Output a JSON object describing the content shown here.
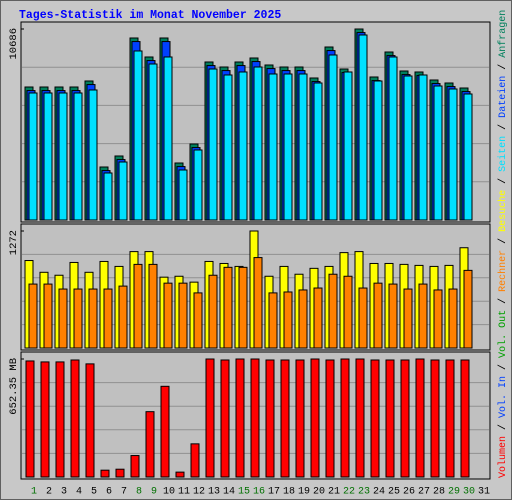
{
  "chart_data": {
    "type": "bar",
    "title": "Tages-Statistik im Monat November 2025",
    "separator": "/",
    "categories": [
      "1",
      "2",
      "3",
      "4",
      "5",
      "6",
      "7",
      "8",
      "9",
      "10",
      "11",
      "12",
      "13",
      "14",
      "15",
      "16",
      "17",
      "18",
      "19",
      "20",
      "21",
      "22",
      "23",
      "24",
      "25",
      "26",
      "27",
      "28",
      "29",
      "30",
      "31"
    ],
    "category_colors": [
      "#007000",
      "#000000",
      "#000000",
      "#000000",
      "#000000",
      "#000000",
      "#000000",
      "#007000",
      "#007000",
      "#000000",
      "#000000",
      "#000000",
      "#000000",
      "#000000",
      "#007000",
      "#007000",
      "#000000",
      "#000000",
      "#000000",
      "#000000",
      "#000000",
      "#007000",
      "#007000",
      "#000000",
      "#000000",
      "#000000",
      "#000000",
      "#000000",
      "#007000",
      "#007000",
      "#000000"
    ],
    "panels": [
      {
        "ylim": [
          0,
          10686
        ],
        "yticks": [
          10686
        ],
        "grid": true,
        "series": [
          {
            "name": "Anfragen",
            "color": "#00805c",
            "values": [
              7441,
              7441,
              7441,
              7441,
              7777,
              2965,
              3581,
              10183,
              9120,
              10183,
              3189,
              4252,
              8840,
              8560,
              8840,
              9064,
              8672,
              8560,
              8560,
              7945,
              9679,
              8448,
              10686,
              8001,
              9399,
              8336,
              8281,
              7833,
              7665,
              7385,
              null
            ]
          },
          {
            "name": "Dateien",
            "color": "#0040ff",
            "values": [
              7241,
              7241,
              7241,
              7241,
              7577,
              2765,
              3381,
              9983,
              8920,
              9983,
              2989,
              4052,
              8640,
              8360,
              8640,
              8864,
              8472,
              8360,
              8360,
              7745,
              9479,
              8248,
              10486,
              7801,
              9199,
              8136,
              8081,
              7633,
              7465,
              7185,
              null
            ]
          },
          {
            "name": "Seiten",
            "color": "#00e0ff",
            "values": [
              7106,
              7106,
              7106,
              7106,
              7274,
              2630,
              3245,
              9456,
              8728,
              9120,
              2798,
              3917,
              8448,
              8113,
              8281,
              8560,
              8169,
              8169,
              8169,
              7665,
              9232,
              8281,
              10351,
              7777,
              9120,
              8057,
              8113,
              7497,
              7330,
              7050,
              null
            ]
          }
        ]
      },
      {
        "ylim": [
          0,
          1272
        ],
        "yticks": [
          1272
        ],
        "grid": true,
        "series": [
          {
            "name": "Besuche",
            "color": "#ffff00",
            "values": [
              951,
              823,
              791,
              930,
              823,
              941,
              887,
              1048,
              1048,
              770,
              780,
              716,
              941,
              919,
              887,
              1272,
              780,
              887,
              802,
              866,
              887,
              1037,
              1048,
              919,
              919,
              909,
              898,
              887,
              898,
              1090,
              null
            ]
          },
          {
            "name": "Rechner",
            "color": "#ff8000",
            "values": [
              695,
              695,
              641,
              641,
              641,
              641,
              673,
              909,
              909,
              705,
              705,
              599,
              791,
              877,
              877,
              983,
              599,
              609,
              631,
              652,
              802,
              780,
              652,
              705,
              695,
              641,
              695,
              631,
              641,
              844,
              null
            ]
          }
        ]
      },
      {
        "ylim": [
          0,
          652.35
        ],
        "yticks": [
          {
            "value": 652.35,
            "label": "652.35 MB"
          }
        ],
        "grid": true,
        "series": [
          {
            "name": "Vol. Out",
            "color": "#00a000",
            "values": [
              null,
              null,
              null,
              null,
              null,
              null,
              null,
              null,
              null,
              null,
              null,
              null,
              null,
              null,
              null,
              null,
              null,
              null,
              null,
              null,
              null,
              null,
              null,
              null,
              null,
              null,
              null,
              null,
              null,
              null,
              null
            ]
          },
          {
            "name": "Vol. In",
            "color": "#0040ff",
            "values": [
              null,
              null,
              null,
              null,
              null,
              null,
              null,
              null,
              null,
              null,
              null,
              null,
              null,
              null,
              null,
              null,
              null,
              null,
              null,
              null,
              null,
              null,
              null,
              null,
              null,
              null,
              null,
              null,
              null,
              null,
              null
            ]
          },
          {
            "name": "Volumen",
            "color": "#ff0000",
            "values": [
              641.5,
              636.2,
              636.2,
              646.9,
              625.4,
              37.7,
              43.1,
              118.6,
              361.2,
              501.4,
              27,
              183.3,
              652.35,
              646.9,
              652.35,
              652.35,
              646.9,
              646.9,
              646.9,
              652.35,
              646.9,
              652.35,
              652.35,
              646.9,
              646.9,
              646.9,
              652.35,
              646.9,
              646.9,
              646.9,
              null
            ]
          }
        ]
      }
    ]
  }
}
